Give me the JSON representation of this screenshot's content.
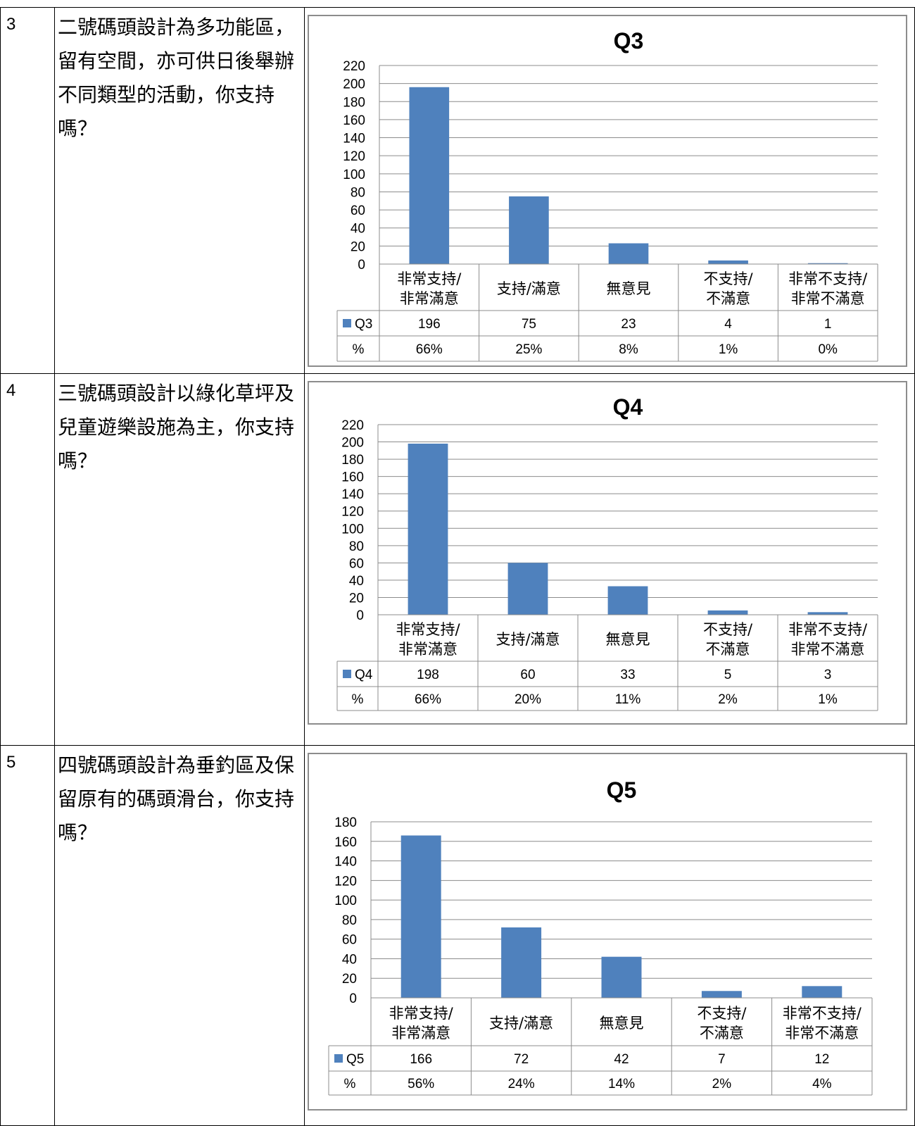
{
  "rows": [
    {
      "number": "3",
      "question": "二號碼頭設計為多功能區，留有空間，亦可供日後舉辦不同類型的活動，你支持嗎？",
      "chart": {
        "type": "bar",
        "title": "Q3",
        "categories": [
          [
            "非常支持/",
            "非常滿意"
          ],
          [
            "支持/滿意"
          ],
          [
            "無意見"
          ],
          [
            "不支持/",
            "不滿意"
          ],
          [
            "非常不支持/",
            "非常不滿意"
          ]
        ],
        "series": [
          {
            "name": "Q3",
            "values": [
              196,
              75,
              23,
              4,
              1
            ]
          }
        ],
        "percent_label": "%",
        "percents": [
          "66%",
          "25%",
          "8%",
          "1%",
          "0%"
        ],
        "ylim": [
          0,
          220
        ],
        "yticks": [
          0,
          20,
          40,
          60,
          80,
          100,
          120,
          140,
          160,
          180,
          200,
          220
        ],
        "color": "#4f81bd"
      }
    },
    {
      "number": "4",
      "question": "三號碼頭設計以綠化草坪及兒童遊樂設施為主，你支持嗎？",
      "chart": {
        "type": "bar",
        "title": "Q4",
        "categories": [
          [
            "非常支持/",
            "非常滿意"
          ],
          [
            "支持/滿意"
          ],
          [
            "無意見"
          ],
          [
            "不支持/",
            "不滿意"
          ],
          [
            "非常不支持/",
            "非常不滿意"
          ]
        ],
        "series": [
          {
            "name": "Q4",
            "values": [
              198,
              60,
              33,
              5,
              3
            ]
          }
        ],
        "percent_label": "%",
        "percents": [
          "66%",
          "20%",
          "11%",
          "2%",
          "1%"
        ],
        "ylim": [
          0,
          220
        ],
        "yticks": [
          0,
          20,
          40,
          60,
          80,
          100,
          120,
          140,
          160,
          180,
          200,
          220
        ],
        "color": "#4f81bd"
      }
    },
    {
      "number": "5",
      "question": "四號碼頭設計為垂釣區及保留原有的碼頭滑台，你支持嗎？",
      "chart": {
        "type": "bar",
        "title": "Q5",
        "categories": [
          [
            "非常支持/",
            "非常滿意"
          ],
          [
            "支持/滿意"
          ],
          [
            "無意見"
          ],
          [
            "不支持/",
            "不滿意"
          ],
          [
            "非常不支持/",
            "非常不滿意"
          ]
        ],
        "series": [
          {
            "name": "Q5",
            "values": [
              166,
              72,
              42,
              7,
              12
            ]
          }
        ],
        "percent_label": "%",
        "percents": [
          "56%",
          "24%",
          "14%",
          "2%",
          "4%"
        ],
        "ylim": [
          0,
          180
        ],
        "yticks": [
          0,
          20,
          40,
          60,
          80,
          100,
          120,
          140,
          160,
          180
        ],
        "color": "#4f81bd"
      }
    }
  ]
}
